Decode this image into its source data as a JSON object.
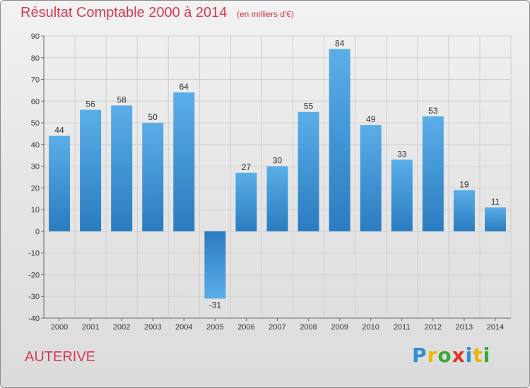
{
  "header": {
    "title": "Résultat Comptable 2000 à 2014",
    "subtitle": "(en milliers d'€)"
  },
  "footer": {
    "commune": "AUTERIVE",
    "logo": [
      "P",
      "r",
      "o",
      "x",
      "i",
      "t",
      "i"
    ]
  },
  "colors": {
    "bar_top": "#5aaee8",
    "bar_bottom": "#2a7cc0",
    "title": "#d23b50",
    "grid": "#cfcfcf"
  },
  "chart_data": {
    "type": "bar",
    "title": "Résultat Comptable 2000 à 2014",
    "subtitle": "(en milliers d'€)",
    "xlabel": "",
    "ylabel": "",
    "ylim": [
      -40,
      90
    ],
    "yticks": [
      -40,
      -30,
      -20,
      -10,
      0,
      10,
      20,
      30,
      40,
      50,
      60,
      70,
      80,
      90
    ],
    "categories": [
      "2000",
      "2001",
      "2002",
      "2003",
      "2004",
      "2005",
      "2006",
      "2007",
      "2008",
      "2009",
      "2010",
      "2011",
      "2012",
      "2013",
      "2014"
    ],
    "values": [
      44,
      56,
      58,
      50,
      64,
      -31,
      27,
      30,
      55,
      84,
      49,
      33,
      53,
      19,
      11
    ],
    "grid": true,
    "legend": "none"
  }
}
